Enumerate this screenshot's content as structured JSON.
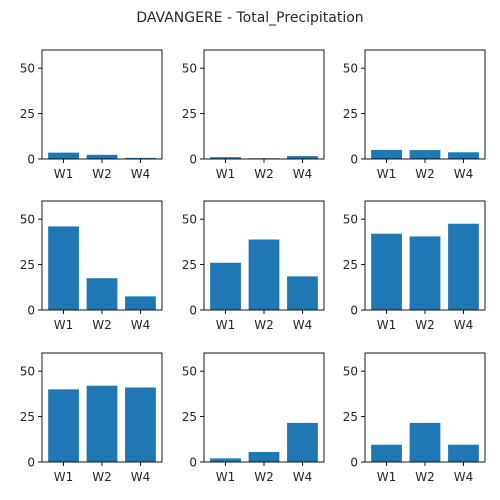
{
  "chart_data": {
    "type": "bar",
    "title": "DAVANGERE - Total_Precipitation",
    "bar_color": "#1f77b4",
    "ylim": [
      0,
      60
    ],
    "yticks": [
      0,
      25,
      50
    ],
    "categories": [
      "W1",
      "W2",
      "W4"
    ],
    "subplots": [
      {
        "values": [
          3.5,
          2.3,
          0.6
        ]
      },
      {
        "values": [
          1.0,
          0.4,
          1.6
        ]
      },
      {
        "values": [
          5.0,
          4.9,
          3.7
        ]
      },
      {
        "values": [
          46.0,
          17.5,
          7.5
        ]
      },
      {
        "values": [
          26.0,
          38.8,
          18.5
        ]
      },
      {
        "values": [
          42.0,
          40.5,
          47.5
        ]
      },
      {
        "values": [
          40.0,
          42.0,
          41.0
        ]
      },
      {
        "values": [
          2.0,
          5.5,
          21.5
        ]
      },
      {
        "values": [
          9.5,
          21.5,
          9.5
        ]
      }
    ]
  }
}
